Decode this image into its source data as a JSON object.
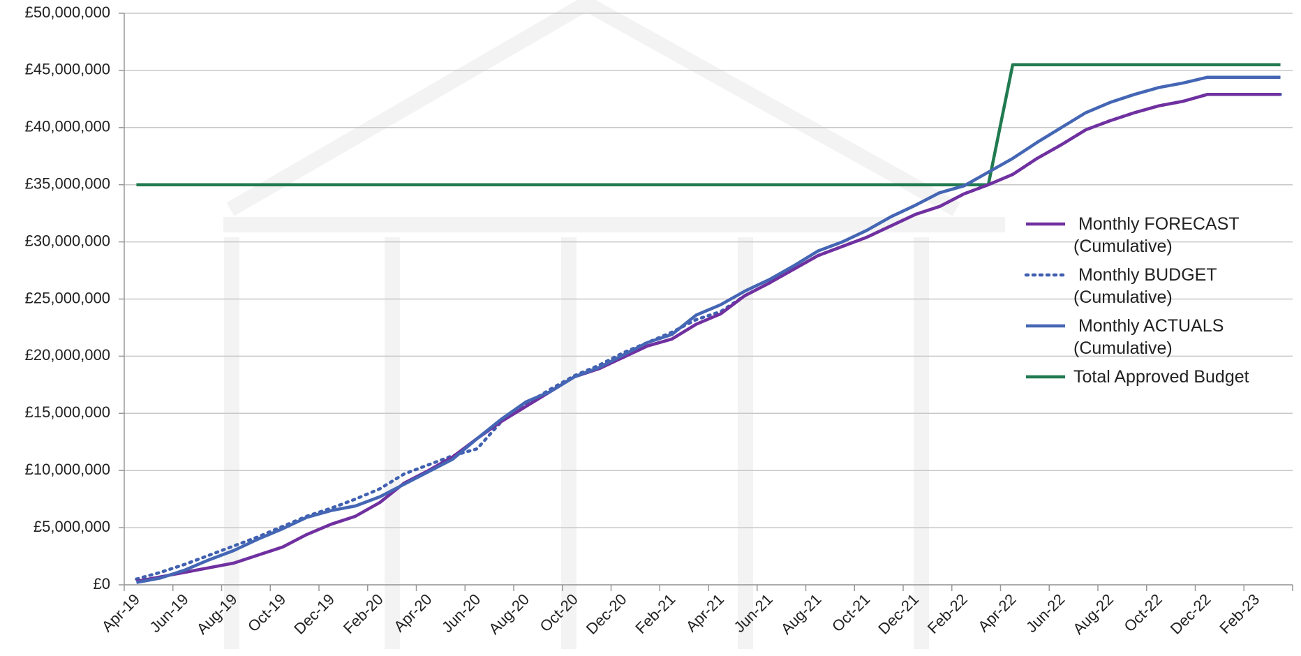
{
  "chart_data": {
    "type": "line",
    "categories": [
      "Apr-19",
      null,
      "Jun-19",
      null,
      "Aug-19",
      null,
      "Oct-19",
      null,
      "Dec-19",
      null,
      "Feb-20",
      null,
      "Apr-20",
      null,
      "Jun-20",
      null,
      "Aug-20",
      null,
      "Oct-20",
      null,
      "Dec-20",
      null,
      "Feb-21",
      null,
      "Apr-21",
      null,
      "Jun-21",
      null,
      "Aug-21",
      null,
      "Oct-21",
      null,
      "Dec-21",
      null,
      "Feb-22",
      null,
      "Apr-22",
      null,
      "Jun-22",
      null,
      "Aug-22",
      null,
      "Oct-22",
      null,
      "Dec-22",
      null,
      "Feb-23",
      null
    ],
    "series": [
      {
        "name": " Monthly FORECAST (Cumulative)",
        "color": "#7030a0",
        "dash": "solid",
        "values": [
          300000,
          700000,
          1100000,
          1500000,
          1900000,
          2600000,
          3300000,
          4400000,
          5300000,
          6000000,
          7200000,
          8900000,
          10000000,
          11200000,
          12800000,
          14300000,
          15600000,
          16900000,
          18200000,
          18900000,
          19900000,
          20900000,
          21500000,
          22800000,
          23700000,
          25300000,
          26400000,
          27600000,
          28800000,
          29600000,
          30400000,
          31400000,
          32400000,
          33100000,
          34200000,
          35000000,
          35900000,
          37300000,
          38500000,
          39800000,
          40600000,
          41300000,
          41900000,
          42300000,
          42900000,
          42900000,
          42900000,
          42900000
        ]
      },
      {
        "name": " Monthly BUDGET (Cumulative)",
        "color": "#4060b0",
        "dash": "dotted",
        "values": [
          500000,
          1100000,
          1800000,
          2600000,
          3400000,
          4200000,
          5100000,
          6000000,
          6700000,
          7500000,
          8400000,
          9700000,
          10500000,
          11300000,
          11900000,
          14300000,
          15800000,
          17100000,
          18300000,
          19200000,
          20300000,
          21200000,
          22100000,
          23200000,
          23900000,
          25300000,
          26400000,
          27600000,
          28800000,
          29600000,
          30400000,
          31400000,
          32400000,
          33100000,
          34200000,
          35000000,
          35900000,
          37300000,
          38500000,
          39800000,
          40600000,
          41300000,
          41900000,
          42300000,
          42900000,
          42900000,
          42900000,
          42900000
        ]
      },
      {
        "name": " Monthly ACTUALS (Cumulative)",
        "color": "#4466b4",
        "dash": "solid",
        "values": [
          200000,
          600000,
          1300000,
          2200000,
          3000000,
          4000000,
          4900000,
          5900000,
          6500000,
          6900000,
          7700000,
          8800000,
          9900000,
          11000000,
          12800000,
          14500000,
          16000000,
          16900000,
          18200000,
          19000000,
          20100000,
          21200000,
          21900000,
          23600000,
          24500000,
          25700000,
          26700000,
          27900000,
          29200000,
          30000000,
          31000000,
          32200000,
          33200000,
          34300000,
          34900000,
          36100000,
          37300000,
          38700000,
          40000000,
          41300000,
          42200000,
          42900000,
          43500000,
          43900000,
          44400000,
          44400000,
          44400000,
          44400000
        ]
      },
      {
        "name": "Total Approved Budget",
        "color": "#217a50",
        "dash": "solid",
        "values": [
          35000000,
          35000000,
          35000000,
          35000000,
          35000000,
          35000000,
          35000000,
          35000000,
          35000000,
          35000000,
          35000000,
          35000000,
          35000000,
          35000000,
          35000000,
          35000000,
          35000000,
          35000000,
          35000000,
          35000000,
          35000000,
          35000000,
          35000000,
          35000000,
          35000000,
          35000000,
          35000000,
          35000000,
          35000000,
          35000000,
          35000000,
          35000000,
          35000000,
          35000000,
          35000000,
          35000000,
          45500000,
          45500000,
          45500000,
          45500000,
          45500000,
          45500000,
          45500000,
          45500000,
          45500000,
          45500000,
          45500000,
          45500000
        ]
      }
    ],
    "ylim": [
      0,
      50000000
    ],
    "yticks": [
      {
        "value": 0,
        "label": "£0"
      },
      {
        "value": 5000000,
        "label": "£5,000,000"
      },
      {
        "value": 10000000,
        "label": "£10,000,000"
      },
      {
        "value": 15000000,
        "label": "£15,000,000"
      },
      {
        "value": 20000000,
        "label": "£20,000,000"
      },
      {
        "value": 25000000,
        "label": "£25,000,000"
      },
      {
        "value": 30000000,
        "label": "£30,000,000"
      },
      {
        "value": 35000000,
        "label": "£35,000,000"
      },
      {
        "value": 40000000,
        "label": "£40,000,000"
      },
      {
        "value": 45000000,
        "label": "£45,000,000"
      },
      {
        "value": 50000000,
        "label": "£50,000,000"
      }
    ],
    "grid": true,
    "legend": "right"
  }
}
